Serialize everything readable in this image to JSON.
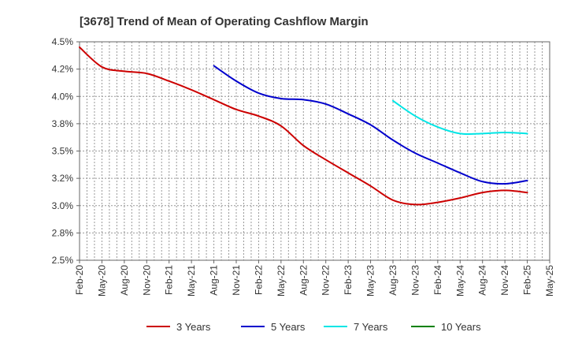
{
  "chart_data": {
    "type": "line",
    "title": "[3678]  Trend of Mean of Operating Cashflow Margin",
    "xlabel": "",
    "ylabel": "",
    "ylim": [
      2.5,
      4.5
    ],
    "y_ticks": [
      "2.5%",
      "2.8%",
      "3.0%",
      "3.2%",
      "3.5%",
      "3.8%",
      "4.0%",
      "4.2%",
      "4.5%"
    ],
    "y_tick_values": [
      2.5,
      2.75,
      3.0,
      3.25,
      3.5,
      3.75,
      4.0,
      4.25,
      4.5
    ],
    "x_ticks": [
      "Feb-20",
      "May-20",
      "Aug-20",
      "Nov-20",
      "Feb-21",
      "May-21",
      "Aug-21",
      "Nov-21",
      "Feb-22",
      "May-22",
      "Aug-22",
      "Nov-22",
      "Feb-23",
      "May-23",
      "Aug-23",
      "Nov-23",
      "Feb-24",
      "May-24",
      "Aug-24",
      "Nov-24",
      "Feb-25",
      "May-25"
    ],
    "grid": true,
    "legend_position": "bottom",
    "series": [
      {
        "name": "3 Years",
        "color": "#cc0000",
        "x": [
          0,
          1,
          2,
          3,
          4,
          5,
          6,
          7,
          8,
          9,
          10,
          11,
          12,
          13,
          14,
          15,
          16,
          17,
          18,
          19,
          20
        ],
        "values": [
          4.45,
          4.27,
          4.23,
          4.21,
          4.14,
          4.06,
          3.97,
          3.88,
          3.82,
          3.73,
          3.55,
          3.42,
          3.3,
          3.18,
          3.05,
          3.01,
          3.03,
          3.07,
          3.12,
          3.14,
          3.12
        ]
      },
      {
        "name": "5 Years",
        "color": "#0000cc",
        "x": [
          6,
          7,
          8,
          9,
          10,
          11,
          12,
          13,
          14,
          15,
          16,
          17,
          18,
          19,
          20
        ],
        "values": [
          4.28,
          4.14,
          4.03,
          3.98,
          3.97,
          3.93,
          3.84,
          3.74,
          3.6,
          3.48,
          3.39,
          3.3,
          3.22,
          3.2,
          3.23
        ]
      },
      {
        "name": "7 Years",
        "color": "#00e5e5",
        "x": [
          14,
          15,
          16,
          17,
          18,
          19,
          20
        ],
        "values": [
          3.96,
          3.82,
          3.72,
          3.66,
          3.66,
          3.67,
          3.66
        ]
      },
      {
        "name": "10 Years",
        "color": "#008000",
        "x": [],
        "values": []
      }
    ]
  }
}
